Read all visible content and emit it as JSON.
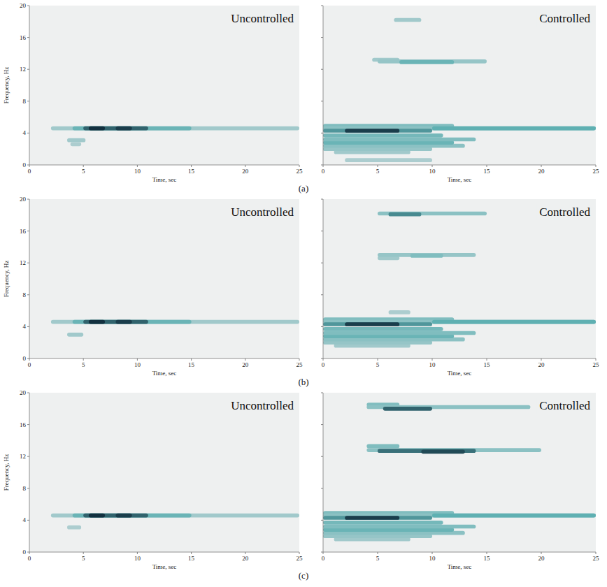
{
  "row_labels": [
    "(a)",
    "(b)",
    "(c)"
  ],
  "chart_data": [
    {
      "type": "spectrogram",
      "title": "Uncontrolled",
      "xlabel": "Time, sec",
      "ylabel": "Frequency, Hz",
      "xlim": [
        0,
        25
      ],
      "ylim": [
        0,
        20
      ],
      "xticks": [
        0,
        5,
        10,
        15,
        20,
        25
      ],
      "yticks": [
        0,
        4,
        8,
        12,
        16,
        20
      ],
      "tick_labels": true,
      "color": "#12303f",
      "bands": [
        {
          "frequency": 4.6,
          "start": 2,
          "end": 25,
          "intensity": 0.2
        },
        {
          "frequency": 4.6,
          "start": 4,
          "end": 15,
          "intensity": 0.45
        },
        {
          "frequency": 4.6,
          "start": 5,
          "end": 11,
          "intensity": 0.8
        },
        {
          "frequency": 4.6,
          "start": 5.5,
          "end": 7,
          "intensity": 1.0
        },
        {
          "frequency": 4.6,
          "start": 8,
          "end": 9.5,
          "intensity": 0.95
        },
        {
          "frequency": 3.1,
          "start": 3.5,
          "end": 5.2,
          "intensity": 0.2
        },
        {
          "frequency": 2.6,
          "start": 3.8,
          "end": 4.8,
          "intensity": 0.15
        }
      ]
    },
    {
      "type": "spectrogram",
      "title": "Controlled",
      "xlabel": "Time, sec",
      "xlim": [
        0,
        25
      ],
      "ylim": [
        0,
        20
      ],
      "xticks": [
        0,
        5,
        10,
        15,
        20,
        25
      ],
      "yticks": [
        0,
        4,
        8,
        12,
        16,
        20
      ],
      "tick_labels": "x",
      "color": "#12303f",
      "bands": [
        {
          "frequency": 0.6,
          "start": 2,
          "end": 10,
          "intensity": 0.15
        },
        {
          "frequency": 1.6,
          "start": 1,
          "end": 8,
          "intensity": 0.2
        },
        {
          "frequency": 2.0,
          "start": 0,
          "end": 10,
          "intensity": 0.25
        },
        {
          "frequency": 2.4,
          "start": 0,
          "end": 13,
          "intensity": 0.3
        },
        {
          "frequency": 2.8,
          "start": 0,
          "end": 12,
          "intensity": 0.45
        },
        {
          "frequency": 3.2,
          "start": 0,
          "end": 14,
          "intensity": 0.35
        },
        {
          "frequency": 3.7,
          "start": 0,
          "end": 11,
          "intensity": 0.4
        },
        {
          "frequency": 4.9,
          "start": 0,
          "end": 12,
          "intensity": 0.35
        },
        {
          "frequency": 4.6,
          "start": 0,
          "end": 25,
          "intensity": 0.3
        },
        {
          "frequency": 4.6,
          "start": 10,
          "end": 25,
          "intensity": 0.5
        },
        {
          "frequency": 4.3,
          "start": 0,
          "end": 10,
          "intensity": 0.6
        },
        {
          "frequency": 4.3,
          "start": 2,
          "end": 7,
          "intensity": 0.95
        },
        {
          "frequency": 13.2,
          "start": 4.5,
          "end": 7,
          "intensity": 0.2
        },
        {
          "frequency": 13.0,
          "start": 5,
          "end": 15,
          "intensity": 0.25
        },
        {
          "frequency": 12.9,
          "start": 7,
          "end": 12,
          "intensity": 0.45
        },
        {
          "frequency": 18.2,
          "start": 6.5,
          "end": 9,
          "intensity": 0.2
        }
      ]
    },
    {
      "type": "spectrogram",
      "title": "Uncontrolled",
      "xlabel": "Time, sec",
      "ylabel": "Frequency, Hz",
      "xlim": [
        0,
        25
      ],
      "ylim": [
        0,
        20
      ],
      "xticks": [
        0,
        5,
        10,
        15,
        20,
        25
      ],
      "yticks": [
        0,
        4,
        8,
        12,
        16,
        20
      ],
      "tick_labels": true,
      "color": "#12303f",
      "bands": [
        {
          "frequency": 4.6,
          "start": 2,
          "end": 25,
          "intensity": 0.2
        },
        {
          "frequency": 4.6,
          "start": 4,
          "end": 15,
          "intensity": 0.45
        },
        {
          "frequency": 4.6,
          "start": 5,
          "end": 11,
          "intensity": 0.8
        },
        {
          "frequency": 4.6,
          "start": 5.5,
          "end": 7,
          "intensity": 1.0
        },
        {
          "frequency": 4.6,
          "start": 8,
          "end": 9.5,
          "intensity": 0.95
        },
        {
          "frequency": 3.0,
          "start": 3.5,
          "end": 5,
          "intensity": 0.2
        }
      ]
    },
    {
      "type": "spectrogram",
      "title": "Controlled",
      "xlabel": "Time, sec",
      "xlim": [
        0,
        25
      ],
      "ylim": [
        0,
        20
      ],
      "xticks": [
        0,
        5,
        10,
        15,
        20,
        25
      ],
      "yticks": [
        0,
        4,
        8,
        12,
        16,
        20
      ],
      "tick_labels": "x",
      "color": "#12303f",
      "bands": [
        {
          "frequency": 1.6,
          "start": 1,
          "end": 8,
          "intensity": 0.2
        },
        {
          "frequency": 2.0,
          "start": 0,
          "end": 10,
          "intensity": 0.25
        },
        {
          "frequency": 2.4,
          "start": 0,
          "end": 13,
          "intensity": 0.3
        },
        {
          "frequency": 2.8,
          "start": 0,
          "end": 12,
          "intensity": 0.45
        },
        {
          "frequency": 3.2,
          "start": 0,
          "end": 14,
          "intensity": 0.35
        },
        {
          "frequency": 3.7,
          "start": 0,
          "end": 11,
          "intensity": 0.4
        },
        {
          "frequency": 4.9,
          "start": 0,
          "end": 12,
          "intensity": 0.35
        },
        {
          "frequency": 4.6,
          "start": 0,
          "end": 25,
          "intensity": 0.3
        },
        {
          "frequency": 4.6,
          "start": 10,
          "end": 25,
          "intensity": 0.5
        },
        {
          "frequency": 4.3,
          "start": 0,
          "end": 10,
          "intensity": 0.6
        },
        {
          "frequency": 4.3,
          "start": 2,
          "end": 7,
          "intensity": 0.95
        },
        {
          "frequency": 5.8,
          "start": 6,
          "end": 8,
          "intensity": 0.15
        },
        {
          "frequency": 12.6,
          "start": 5,
          "end": 7,
          "intensity": 0.2
        },
        {
          "frequency": 13.0,
          "start": 5,
          "end": 14,
          "intensity": 0.25
        },
        {
          "frequency": 12.9,
          "start": 8,
          "end": 11,
          "intensity": 0.35
        },
        {
          "frequency": 18.2,
          "start": 5,
          "end": 15,
          "intensity": 0.3
        },
        {
          "frequency": 18.1,
          "start": 6,
          "end": 9,
          "intensity": 0.65
        }
      ]
    },
    {
      "type": "spectrogram",
      "title": "Uncontrolled",
      "xlabel": "Time, sec",
      "ylabel": "Frequency, Hz",
      "xlim": [
        0,
        25
      ],
      "ylim": [
        0,
        20
      ],
      "xticks": [
        0,
        5,
        10,
        15,
        20,
        25
      ],
      "yticks": [
        0,
        4,
        8,
        12,
        16,
        20
      ],
      "tick_labels": true,
      "color": "#12303f",
      "bands": [
        {
          "frequency": 4.6,
          "start": 2,
          "end": 25,
          "intensity": 0.2
        },
        {
          "frequency": 4.6,
          "start": 4,
          "end": 15,
          "intensity": 0.45
        },
        {
          "frequency": 4.6,
          "start": 5,
          "end": 11,
          "intensity": 0.8
        },
        {
          "frequency": 4.6,
          "start": 5.5,
          "end": 7,
          "intensity": 1.0
        },
        {
          "frequency": 4.6,
          "start": 8,
          "end": 9.5,
          "intensity": 0.95
        },
        {
          "frequency": 3.1,
          "start": 3.5,
          "end": 4.8,
          "intensity": 0.15
        }
      ]
    },
    {
      "type": "spectrogram",
      "title": "Controlled",
      "xlabel": "Time, sec",
      "xlim": [
        0,
        25
      ],
      "ylim": [
        0,
        20
      ],
      "xticks": [
        0,
        5,
        10,
        15,
        20,
        25
      ],
      "yticks": [
        0,
        4,
        8,
        12,
        16,
        20
      ],
      "tick_labels": "x",
      "color": "#12303f",
      "bands": [
        {
          "frequency": 1.6,
          "start": 1,
          "end": 8,
          "intensity": 0.2
        },
        {
          "frequency": 2.0,
          "start": 0,
          "end": 10,
          "intensity": 0.25
        },
        {
          "frequency": 2.4,
          "start": 0,
          "end": 13,
          "intensity": 0.3
        },
        {
          "frequency": 2.8,
          "start": 0,
          "end": 12,
          "intensity": 0.45
        },
        {
          "frequency": 3.2,
          "start": 0,
          "end": 14,
          "intensity": 0.35
        },
        {
          "frequency": 3.7,
          "start": 0,
          "end": 11,
          "intensity": 0.4
        },
        {
          "frequency": 4.9,
          "start": 0,
          "end": 12,
          "intensity": 0.35
        },
        {
          "frequency": 4.6,
          "start": 0,
          "end": 25,
          "intensity": 0.3
        },
        {
          "frequency": 4.6,
          "start": 10,
          "end": 25,
          "intensity": 0.5
        },
        {
          "frequency": 4.3,
          "start": 0,
          "end": 10,
          "intensity": 0.6
        },
        {
          "frequency": 4.3,
          "start": 2,
          "end": 7,
          "intensity": 0.95
        },
        {
          "frequency": 13.3,
          "start": 4,
          "end": 7,
          "intensity": 0.35
        },
        {
          "frequency": 12.8,
          "start": 4,
          "end": 20,
          "intensity": 0.3
        },
        {
          "frequency": 12.7,
          "start": 5,
          "end": 14,
          "intensity": 0.75
        },
        {
          "frequency": 12.6,
          "start": 9,
          "end": 13,
          "intensity": 0.9
        },
        {
          "frequency": 18.5,
          "start": 4,
          "end": 7,
          "intensity": 0.35
        },
        {
          "frequency": 18.2,
          "start": 4,
          "end": 19,
          "intensity": 0.3
        },
        {
          "frequency": 18.0,
          "start": 5.5,
          "end": 10,
          "intensity": 0.8
        }
      ]
    }
  ]
}
